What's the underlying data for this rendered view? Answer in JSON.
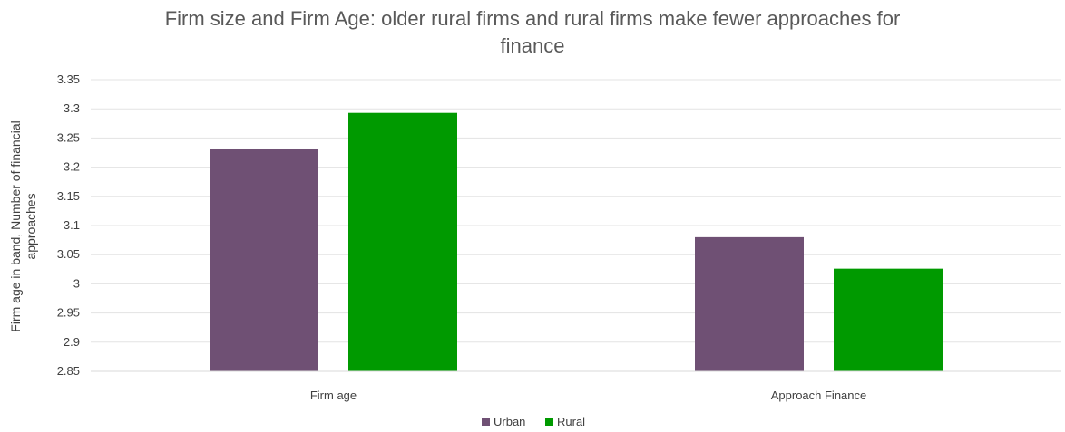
{
  "chart_data": {
    "type": "bar",
    "title_lines": [
      "Firm size and Firm Age: older rural firms and rural firms make fewer approaches for",
      "finance"
    ],
    "xlabel": "",
    "ylabel_lines": [
      "Firm age in band, Number of financial",
      "approaches"
    ],
    "categories": [
      "Firm age",
      "Approach Finance"
    ],
    "series": [
      {
        "name": "Urban",
        "color": "#6f5074",
        "values": [
          3.232,
          3.08
        ]
      },
      {
        "name": "Rural",
        "color": "#009a00",
        "values": [
          3.293,
          3.026
        ]
      }
    ],
    "ylim": [
      2.85,
      3.35
    ],
    "yticks": [
      "2.85",
      "2.9",
      "2.95",
      "3",
      "3.05",
      "3.1",
      "3.15",
      "3.2",
      "3.25",
      "3.3",
      "3.35"
    ],
    "grid": true,
    "legend_position": "bottom"
  }
}
